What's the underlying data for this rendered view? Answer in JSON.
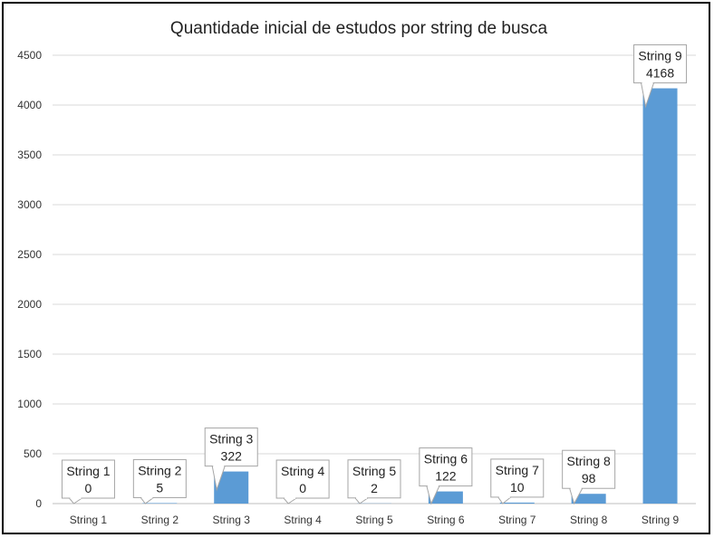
{
  "chart_data": {
    "type": "bar",
    "title": "Quantidade inicial de estudos por string de busca",
    "categories": [
      "String 1",
      "String 2",
      "String 3",
      "String 4",
      "String 5",
      "String 6",
      "String 7",
      "String 8",
      "String 9"
    ],
    "values": [
      0,
      5,
      322,
      0,
      2,
      122,
      10,
      98,
      4168
    ],
    "xlabel": "",
    "ylabel": "",
    "ylim": [
      0,
      4500
    ],
    "yticks": [
      0,
      500,
      1000,
      1500,
      2000,
      2500,
      3000,
      3500,
      4000,
      4500
    ],
    "grid": true,
    "legend": "none",
    "bar_color": "#5b9bd5",
    "data_labels": [
      {
        "name": "String 1",
        "value": "0"
      },
      {
        "name": "String 2",
        "value": "5"
      },
      {
        "name": "String 3",
        "value": "322"
      },
      {
        "name": "String 4",
        "value": "0"
      },
      {
        "name": "String 5",
        "value": "2"
      },
      {
        "name": "String 6",
        "value": "122"
      },
      {
        "name": "String 7",
        "value": "10"
      },
      {
        "name": "String 8",
        "value": "98"
      },
      {
        "name": "String 9",
        "value": "4168"
      }
    ]
  }
}
